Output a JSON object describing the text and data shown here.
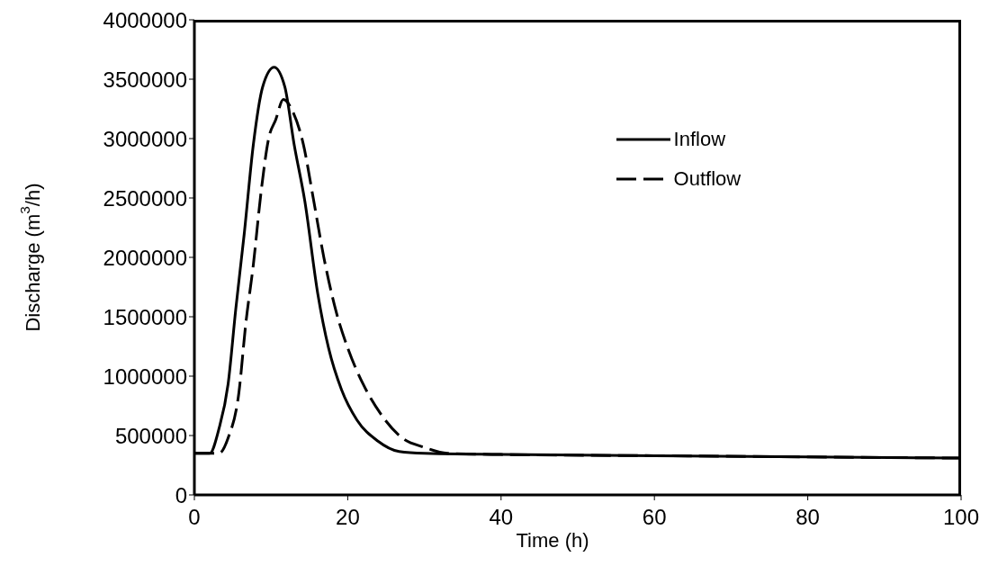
{
  "chart_data": {
    "type": "line",
    "xlabel": "Time (h)",
    "ylabel": "Discharge (m$^{3}$/h)",
    "xlim": [
      0,
      100
    ],
    "xticks": [
      0,
      20,
      40,
      60,
      80,
      100
    ],
    "ylim": [
      0,
      4000000
    ],
    "yticks": [
      0,
      500000,
      1000000,
      1500000,
      2000000,
      2500000,
      3000000,
      3500000,
      4000000
    ],
    "grid": false,
    "legend": "top right",
    "marker": "none",
    "series": [
      {
        "name": "Inflow",
        "color": "#000000",
        "line_style": "solid",
        "x": [
          0,
          2,
          3.2,
          4.4,
          5.4,
          6.5,
          7.7,
          8.9,
          10.4,
          11.8,
          13,
          14.4,
          16.1,
          17.5,
          19.2,
          21.2,
          23.9,
          26.7,
          30,
          40,
          60,
          80,
          100
        ],
        "values": [
          350000,
          350000,
          555000,
          934000,
          1566000,
          2197000,
          2955000,
          3434000,
          3600000,
          3434000,
          2955000,
          2475000,
          1692000,
          1237000,
          884000,
          631000,
          455000,
          366000,
          350000,
          340000,
          330000,
          320000,
          310000
        ]
      },
      {
        "name": "Outflow",
        "color": "#000000",
        "line_style": "dashed",
        "x": [
          0,
          3.2,
          4.4,
          5.8,
          6.7,
          7.7,
          8.7,
          9.7,
          10.6,
          11.6,
          12.8,
          14.2,
          15.5,
          16.9,
          18.5,
          20,
          22,
          24.3,
          27.1,
          30,
          33,
          40,
          60,
          80,
          100
        ],
        "values": [
          350000,
          350000,
          480000,
          858000,
          1439000,
          1944000,
          2551000,
          3005000,
          3157000,
          3330000,
          3232000,
          2955000,
          2500000,
          1995000,
          1540000,
          1237000,
          934000,
          682000,
          480000,
          400000,
          350000,
          340000,
          330000,
          320000,
          310000
        ]
      }
    ]
  }
}
